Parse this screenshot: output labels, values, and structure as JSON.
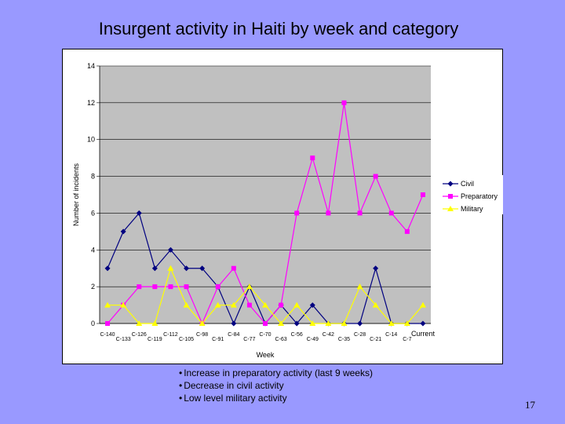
{
  "chart_data": {
    "type": "line",
    "title": "Insurgent activity in Haiti by week and category",
    "xlabel": "Week",
    "ylabel": "Number of incidents",
    "ylim": [
      0,
      14
    ],
    "yticks": [
      0,
      2,
      4,
      6,
      8,
      10,
      12,
      14
    ],
    "grid": true,
    "legend_position": "right",
    "categories": [
      "C-140",
      "C-133",
      "C-126",
      "C-119",
      "C-112",
      "C-105",
      "C-98",
      "C-91",
      "C-84",
      "C-77",
      "C-70",
      "C-63",
      "C-56",
      "C-49",
      "C-42",
      "C-35",
      "C-28",
      "C-21",
      "C-14",
      "C-7",
      "Current"
    ],
    "x_points": 21,
    "series": [
      {
        "name": "Civil",
        "color": "#000080",
        "marker": "diamond",
        "values": [
          3,
          5,
          6,
          3,
          4,
          3,
          3,
          2,
          0,
          2,
          0,
          1,
          0,
          1,
          0,
          0,
          0,
          3,
          0,
          0,
          0
        ]
      },
      {
        "name": "Preparatory",
        "color": "#ff00ff",
        "marker": "square",
        "values": [
          0,
          1,
          2,
          2,
          2,
          2,
          0,
          2,
          3,
          1,
          0,
          1,
          6,
          9,
          6,
          12,
          6,
          8,
          6,
          5,
          7
        ]
      },
      {
        "name": "Military",
        "color": "#ffff00",
        "marker": "triangle",
        "values": [
          1,
          1,
          0,
          0,
          3,
          1,
          0,
          1,
          1,
          2,
          1,
          0,
          1,
          0,
          0,
          0,
          2,
          1,
          0,
          0,
          1
        ]
      }
    ]
  },
  "notes": [
    "Increase in preparatory activity (last 9 weeks)",
    "Decrease in civil activity",
    "Low level military activity"
  ],
  "page_number": "17"
}
